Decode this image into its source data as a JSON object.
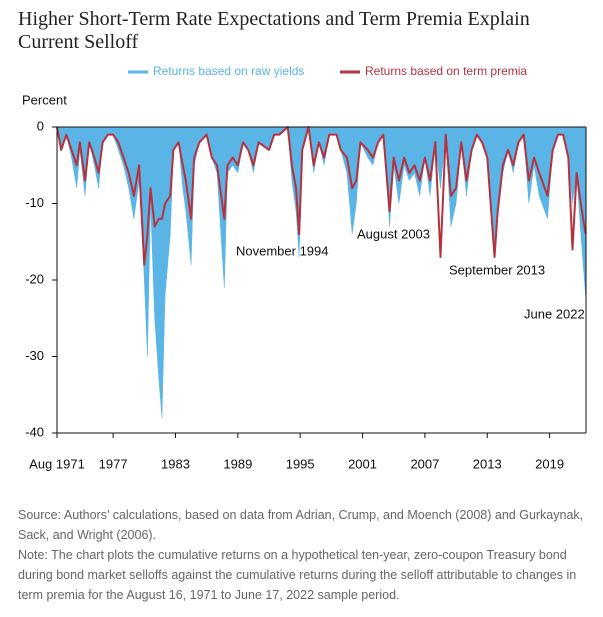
{
  "chart_data": {
    "type": "area-line",
    "title": "Higher Short-Term Rate Expectations and Term Premia Explain Current Selloff",
    "y_label": "Percent",
    "x": [
      1971.6,
      1972.0,
      1972.5,
      1973.0,
      1973.5,
      1973.8,
      1974.3,
      1974.7,
      1975.2,
      1975.6,
      1976.0,
      1976.5,
      1977.0,
      1977.5,
      1978.0,
      1978.5,
      1979.0,
      1979.5,
      1980.0,
      1980.3,
      1980.6,
      1981.0,
      1981.4,
      1981.7,
      1982.0,
      1982.5,
      1982.8,
      1983.3,
      1983.7,
      1984.0,
      1984.5,
      1984.8,
      1985.3,
      1986.0,
      1986.5,
      1987.0,
      1987.7,
      1988.0,
      1988.5,
      1989.0,
      1989.5,
      1990.0,
      1990.5,
      1991.0,
      1992.0,
      1992.5,
      1993.0,
      1993.8,
      1994.2,
      1994.6,
      1994.9,
      1995.2,
      1995.8,
      1996.3,
      1996.8,
      1997.3,
      1997.8,
      1998.5,
      1998.9,
      1999.5,
      2000.0,
      2000.4,
      2000.8,
      2001.5,
      2002.0,
      2002.5,
      2003.0,
      2003.6,
      2004.0,
      2004.5,
      2005.0,
      2005.5,
      2006.0,
      2006.5,
      2007.0,
      2007.5,
      2008.0,
      2008.5,
      2009.0,
      2009.5,
      2010.0,
      2010.5,
      2011.0,
      2011.5,
      2012.0,
      2012.5,
      2013.0,
      2013.7,
      2014.0,
      2014.5,
      2015.0,
      2015.5,
      2016.0,
      2016.5,
      2017.0,
      2017.5,
      2018.0,
      2018.8,
      2019.3,
      2019.8,
      2020.3,
      2020.8,
      2021.2,
      2021.6,
      2022.0,
      2022.46
    ],
    "series": [
      {
        "name": "Returns based on raw yields",
        "color": "#5ab4e5",
        "style": "area",
        "values": [
          0,
          -3,
          -1,
          -4,
          -8,
          -3,
          -9,
          -2,
          -5,
          -8,
          -2,
          -1,
          -1,
          -3,
          -5,
          -8,
          -12,
          -7,
          -20,
          -30,
          -10,
          -25,
          -33,
          -38,
          -22,
          -14,
          -3,
          -2,
          -8,
          -11,
          -18,
          -5,
          -2,
          -1,
          -4,
          -6,
          -21,
          -6,
          -5,
          -6,
          -2,
          -3,
          -6,
          -2,
          -3,
          -1,
          -1,
          0,
          -7,
          -11,
          -17,
          -3,
          0,
          -6,
          -2,
          -5,
          -1,
          -1,
          -3,
          -6,
          -14,
          -10,
          -2,
          -4,
          -5,
          -2,
          -1,
          -13,
          -5,
          -10,
          -5,
          -7,
          -6,
          -9,
          -4,
          -9,
          -2,
          -8,
          -1,
          -13,
          -10,
          -2,
          -9,
          -3,
          -1,
          -2,
          -4,
          -16,
          -12,
          -6,
          -3,
          -6,
          -2,
          -1,
          -10,
          -5,
          -9,
          -12,
          -3,
          -1,
          -1,
          -4,
          -10,
          -6,
          -14,
          -22
        ]
      },
      {
        "name": "Returns based on term premia",
        "color": "#b5333f",
        "style": "line",
        "values": [
          0,
          -3,
          -1,
          -3,
          -5,
          -2,
          -7,
          -2,
          -4,
          -6,
          -2,
          -1,
          -1,
          -2,
          -4,
          -6,
          -9,
          -5,
          -18,
          -14,
          -8,
          -13,
          -12,
          -12,
          -10,
          -9,
          -3,
          -2,
          -5,
          -7,
          -12,
          -4,
          -2,
          -1,
          -4,
          -5,
          -12,
          -5,
          -4,
          -5,
          -2,
          -3,
          -5,
          -2,
          -3,
          -1,
          -1,
          0,
          -5,
          -8,
          -14,
          -3,
          0,
          -5,
          -2,
          -4,
          -1,
          -1,
          -3,
          -4,
          -8,
          -7,
          -2,
          -3,
          -4,
          -2,
          -1,
          -11,
          -4,
          -7,
          -4,
          -6,
          -5,
          -7,
          -4,
          -7,
          -2,
          -17,
          -1,
          -9,
          -8,
          -2,
          -7,
          -3,
          -1,
          -2,
          -4,
          -17,
          -11,
          -5,
          -3,
          -5,
          -2,
          -1,
          -7,
          -4,
          -6,
          -9,
          -3,
          -1,
          -1,
          -4,
          -16,
          -6,
          -10,
          -14
        ]
      }
    ],
    "xlim": [
      1971.6,
      2022.5
    ],
    "xticks": [
      {
        "value": 1971.6,
        "label": "Aug 1971"
      },
      1977,
      1983,
      1989,
      1995,
      2001,
      2007,
      2013,
      2019
    ],
    "ylim": [
      -40,
      0
    ],
    "yticks": [
      0,
      -10,
      -20,
      -30,
      -40
    ],
    "annotations": [
      "November 1994",
      "August 2003",
      "September 2013",
      "June 2022"
    ],
    "source": "Source: Authors’ calculations, based on data from Adrian, Crump, and Moench (2008) and Gurkaynak, Sack, and Wright (2006).",
    "note": "Note: The chart plots the cumulative returns on a hypothetical ten-year, zero-coupon Treasury bond during bond market selloffs against the cumulative returns during the selloff attributable to changes in term premia for the August 16, 1971 to June 17, 2022 sample period."
  }
}
